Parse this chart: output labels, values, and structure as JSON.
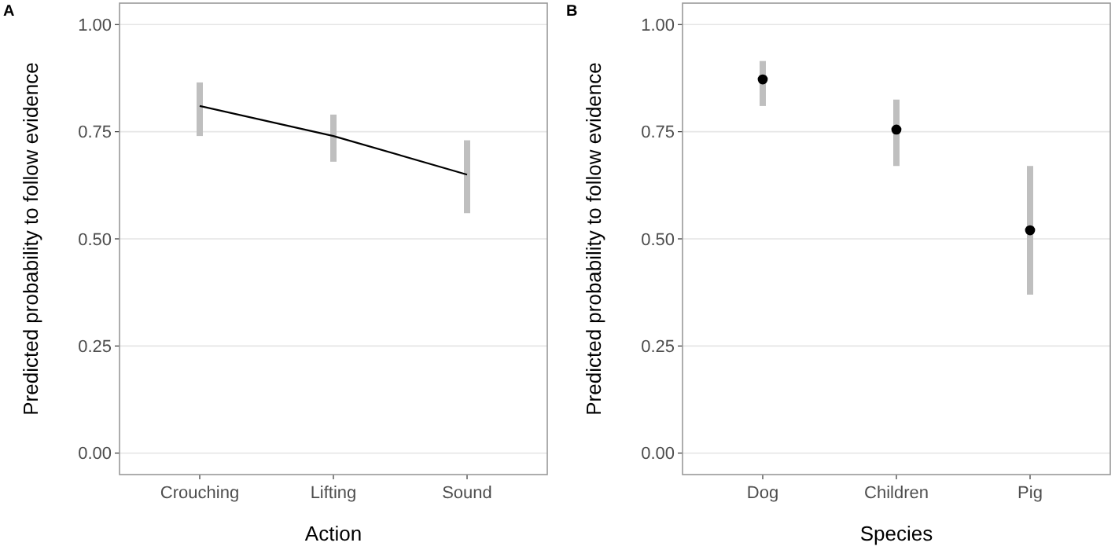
{
  "chart_data": [
    {
      "type": "line",
      "title": "A",
      "xlabel": "Action",
      "ylabel": "Predicted probability to follow evidence",
      "categories": [
        "Crouching",
        "Lifting",
        "Sound"
      ],
      "series": [
        {
          "color": "#000000",
          "values": [
            0.81,
            0.74,
            0.65
          ],
          "errors": [
            [
              0.74,
              0.865
            ],
            [
              0.68,
              0.79
            ],
            [
              0.56,
              0.73
            ]
          ]
        }
      ],
      "ylim": [
        -0.05,
        1.05
      ],
      "yticks": [
        {
          "value": 0,
          "label": "0.00"
        },
        {
          "value": 0.25,
          "label": "0.25"
        },
        {
          "value": 0.5,
          "label": "0.50"
        },
        {
          "value": 0.75,
          "label": "0.75"
        },
        {
          "value": 1,
          "label": "1.00"
        }
      ],
      "grid": "y",
      "marker": "none",
      "legend": false
    },
    {
      "type": "scatter",
      "title": "B",
      "xlabel": "Species",
      "ylabel": "Predicted probability to follow evidence",
      "categories": [
        "Dog",
        "Children",
        "Pig"
      ],
      "series": [
        {
          "color": "#000000",
          "values": [
            0.872,
            0.755,
            0.52
          ],
          "errors": [
            [
              0.81,
              0.915
            ],
            [
              0.67,
              0.825
            ],
            [
              0.37,
              0.67
            ]
          ]
        }
      ],
      "ylim": [
        -0.05,
        1.05
      ],
      "yticks": [
        {
          "value": 0,
          "label": "0.00"
        },
        {
          "value": 0.25,
          "label": "0.25"
        },
        {
          "value": 0.5,
          "label": "0.50"
        },
        {
          "value": 0.75,
          "label": "0.75"
        },
        {
          "value": 1,
          "label": "1.00"
        }
      ],
      "grid": "y",
      "marker": "circle",
      "legend": false
    }
  ]
}
